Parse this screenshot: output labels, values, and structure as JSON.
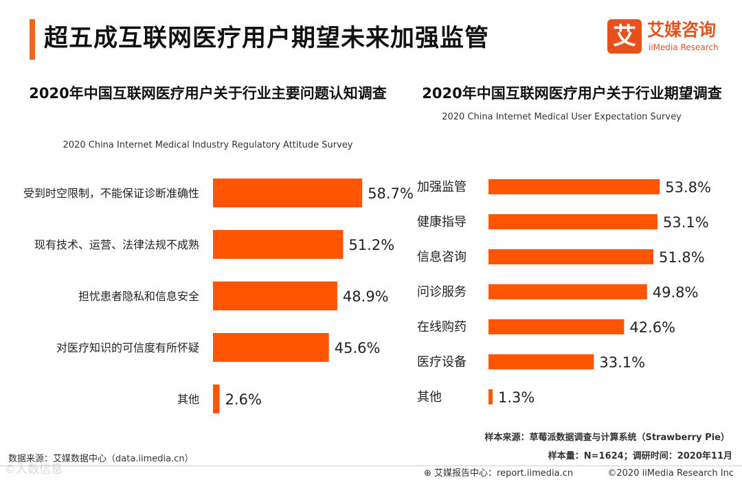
{
  "header": {
    "title": "超五成互联网医疗用户期望未来加强监管"
  },
  "logo": {
    "glyph": "艾",
    "name_cn": "艾媒咨询",
    "name_en": "iiMedia Research"
  },
  "colors": {
    "accent": "#F26522",
    "bar": "#FF5500",
    "text": "#1a1a1a"
  },
  "chart_data": [
    {
      "type": "bar",
      "orientation": "horizontal",
      "title": "2020年中国互联网医疗用户关于行业主要问题认知调查",
      "subtitle": "2020 China Internet Medical Industry Regulatory Attitude Survey",
      "categories": [
        "受到时空限制，不能保证诊断准确性",
        "现有技术、运营、法律法规不成熟",
        "担忧患者隐私和信息安全",
        "对医疗知识的可信度有所怀疑",
        "其他"
      ],
      "values": [
        58.7,
        51.2,
        48.9,
        45.6,
        2.6
      ],
      "value_suffix": "%",
      "xlim": [
        0,
        60
      ]
    },
    {
      "type": "bar",
      "orientation": "horizontal",
      "title": "2020年中国互联网医疗用户关于行业期望调查",
      "subtitle": "2020 China Internet Medical User Expectation Survey",
      "categories": [
        "加强监管",
        "健康指导",
        "信息咨询",
        "问诊服务",
        "在线购药",
        "医疗设备",
        "其他"
      ],
      "values": [
        53.8,
        53.1,
        51.8,
        49.8,
        42.6,
        33.1,
        1.3
      ],
      "value_suffix": "%",
      "xlim": [
        0,
        60
      ]
    }
  ],
  "footer": {
    "source_left": "数据来源：艾媒数据中心（data.iimedia.cn）",
    "sample_source": "样本来源：草莓派数据调查与计算系统（Strawberry Pie）",
    "sample_size": "样本量：N=1624；调研时间：2020年11月",
    "report_center": "艾媒报告中心：report.iimedia.cn",
    "copyright": "©2020  iiMedia Research  Inc",
    "watermark": "©人数信息"
  }
}
